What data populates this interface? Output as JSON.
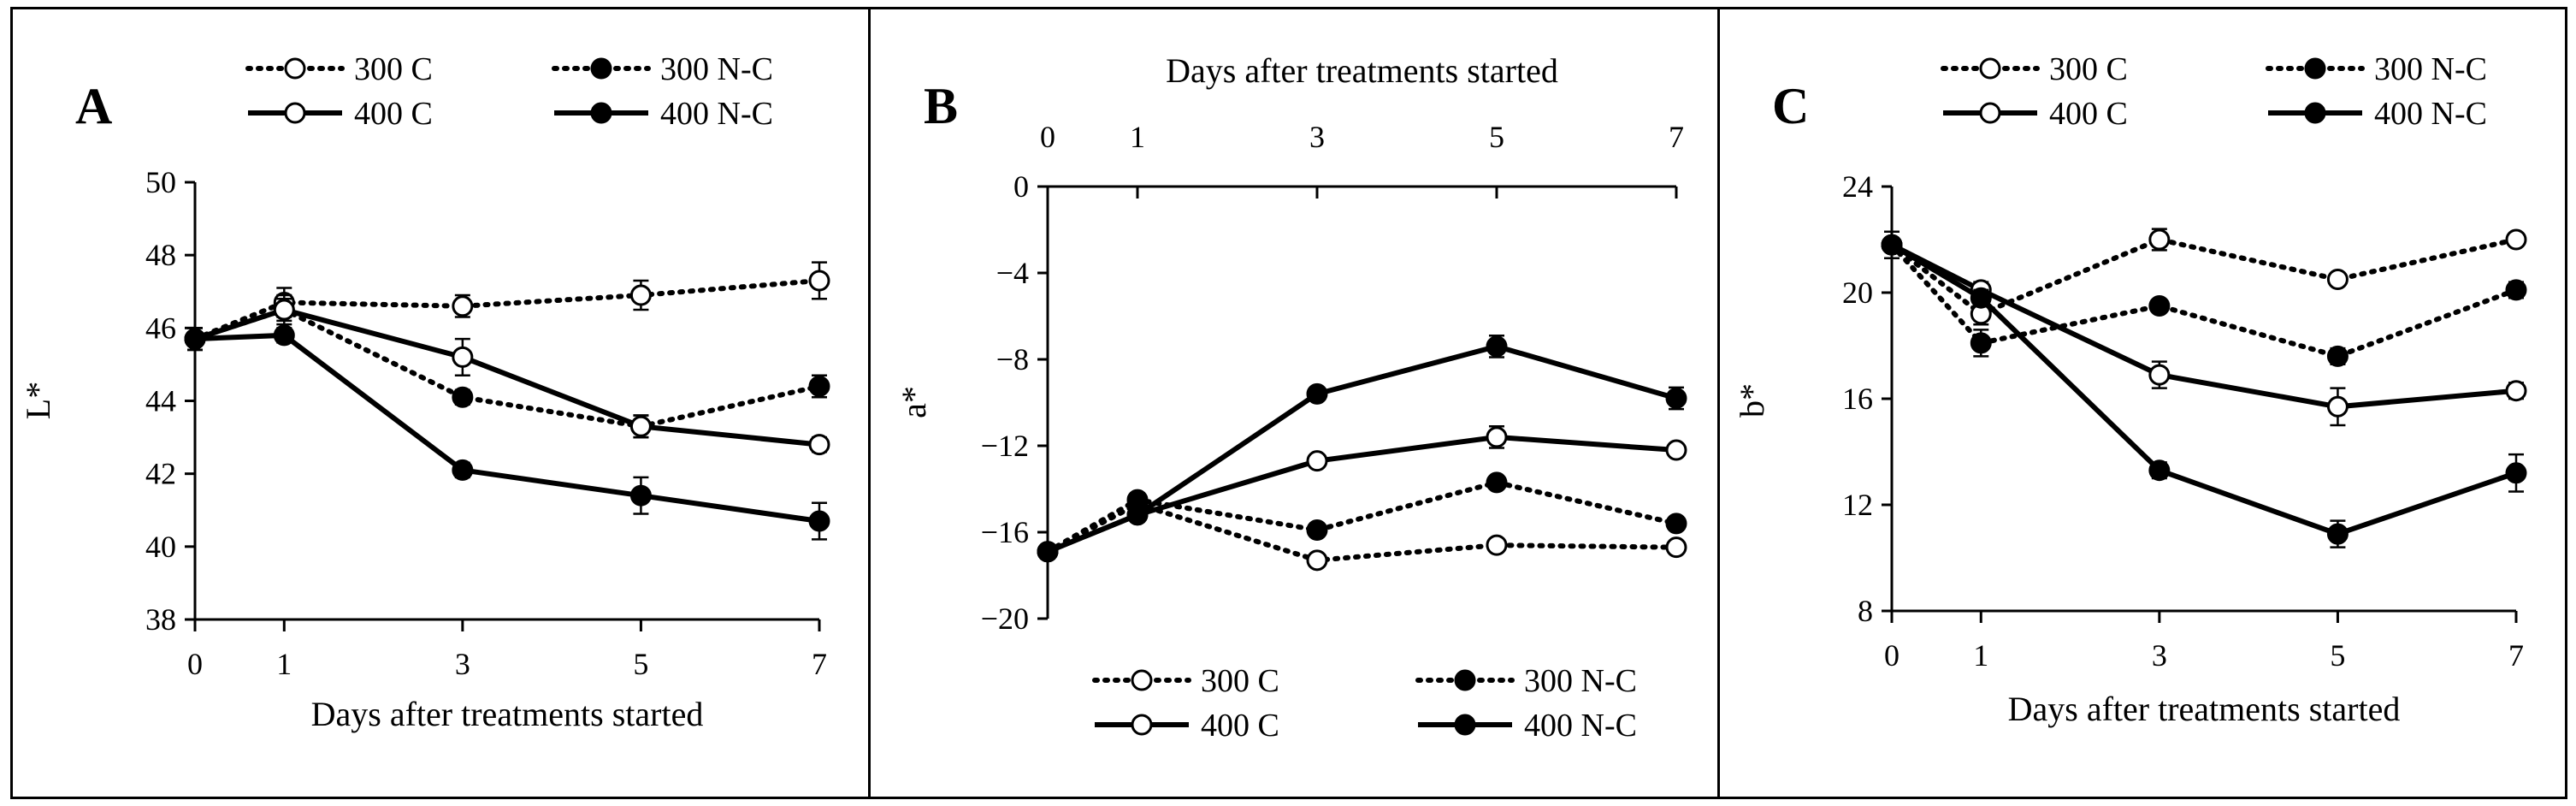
{
  "figure": {
    "legend_labels": [
      "300 C",
      "300 N-C",
      "400 C",
      "400 N-C"
    ]
  },
  "chart_data": [
    {
      "type": "line",
      "panel": "A",
      "xlabel": "Days after treatments started",
      "ylabel": "L*",
      "x": [
        0,
        1,
        3,
        5,
        7
      ],
      "x_ticks": [
        "0",
        "1",
        "3",
        "5",
        "7"
      ],
      "ylim": [
        38,
        50
      ],
      "y_ticks": [
        38,
        40,
        42,
        44,
        46,
        48,
        50
      ],
      "legend": "top",
      "series": [
        {
          "name": "300 C",
          "style": "dotted",
          "marker": "open",
          "values": [
            45.7,
            46.7,
            46.6,
            46.9,
            47.3
          ],
          "errors": [
            0.3,
            0.4,
            0.3,
            0.4,
            0.5
          ]
        },
        {
          "name": "300 N-C",
          "style": "dotted",
          "marker": "filled",
          "values": [
            45.7,
            46.5,
            44.1,
            43.3,
            44.4
          ],
          "errors": [
            0.3,
            0.3,
            0.2,
            0.3,
            0.3
          ]
        },
        {
          "name": "400 C",
          "style": "solid",
          "marker": "open",
          "values": [
            45.7,
            46.5,
            45.2,
            43.3,
            42.8
          ],
          "errors": [
            0.3,
            0.4,
            0.5,
            0.3,
            0.2
          ]
        },
        {
          "name": "400 N-C",
          "style": "solid",
          "marker": "filled",
          "values": [
            45.7,
            45.8,
            42.1,
            41.4,
            40.7
          ],
          "errors": [
            0.3,
            0.2,
            0.2,
            0.5,
            0.5
          ]
        }
      ]
    },
    {
      "type": "line",
      "panel": "B",
      "xlabel": "Days after treatments started",
      "ylabel": "a*",
      "x": [
        0,
        1,
        3,
        5,
        7
      ],
      "x_ticks": [
        "0",
        "1",
        "3",
        "5",
        "7"
      ],
      "ylim": [
        -20,
        0
      ],
      "y_ticks": [
        0,
        -4,
        -8,
        -12,
        -16,
        -20
      ],
      "x_axis_position": "top",
      "legend": "bottom",
      "series": [
        {
          "name": "300 C",
          "style": "dotted",
          "marker": "open",
          "values": [
            -16.9,
            -14.7,
            -17.3,
            -16.6,
            -16.7
          ],
          "errors": [
            0.2,
            0.3,
            0.2,
            0.2,
            0.2
          ]
        },
        {
          "name": "300 N-C",
          "style": "dotted",
          "marker": "filled",
          "values": [
            -16.9,
            -14.5,
            -15.9,
            -13.7,
            -15.6
          ],
          "errors": [
            0.2,
            0.3,
            0.3,
            0.2,
            0.3
          ]
        },
        {
          "name": "400 C",
          "style": "solid",
          "marker": "open",
          "values": [
            -16.9,
            -15.2,
            -12.7,
            -11.6,
            -12.2
          ],
          "errors": [
            0.2,
            0.3,
            0.2,
            0.5,
            0.2
          ]
        },
        {
          "name": "400 N-C",
          "style": "solid",
          "marker": "filled",
          "values": [
            -16.9,
            -15.2,
            -9.6,
            -7.4,
            -9.8
          ],
          "errors": [
            0.2,
            0.3,
            0.2,
            0.5,
            0.5
          ]
        }
      ]
    },
    {
      "type": "line",
      "panel": "C",
      "xlabel": "Days after treatments started",
      "ylabel": "b*",
      "x": [
        0,
        1,
        3,
        5,
        7
      ],
      "x_ticks": [
        "0",
        "1",
        "3",
        "5",
        "7"
      ],
      "ylim": [
        8,
        24
      ],
      "y_ticks": [
        8,
        12,
        16,
        20,
        24
      ],
      "legend": "top",
      "series": [
        {
          "name": "300 C",
          "style": "dotted",
          "marker": "open",
          "values": [
            21.8,
            19.2,
            22.0,
            20.5,
            22.0
          ],
          "errors": [
            0.5,
            0.4,
            0.4,
            0.2,
            0.2
          ]
        },
        {
          "name": "300 N-C",
          "style": "dotted",
          "marker": "filled",
          "values": [
            21.8,
            18.1,
            19.5,
            17.6,
            20.1
          ],
          "errors": [
            0.5,
            0.5,
            0.2,
            0.3,
            0.3
          ]
        },
        {
          "name": "400 C",
          "style": "solid",
          "marker": "open",
          "values": [
            21.8,
            20.1,
            16.9,
            15.7,
            16.3
          ],
          "errors": [
            0.5,
            0.3,
            0.5,
            0.7,
            0.3
          ]
        },
        {
          "name": "400 N-C",
          "style": "solid",
          "marker": "filled",
          "values": [
            21.8,
            19.8,
            13.3,
            10.9,
            13.2
          ],
          "errors": [
            0.5,
            0.3,
            0.3,
            0.5,
            0.7
          ]
        }
      ]
    }
  ]
}
